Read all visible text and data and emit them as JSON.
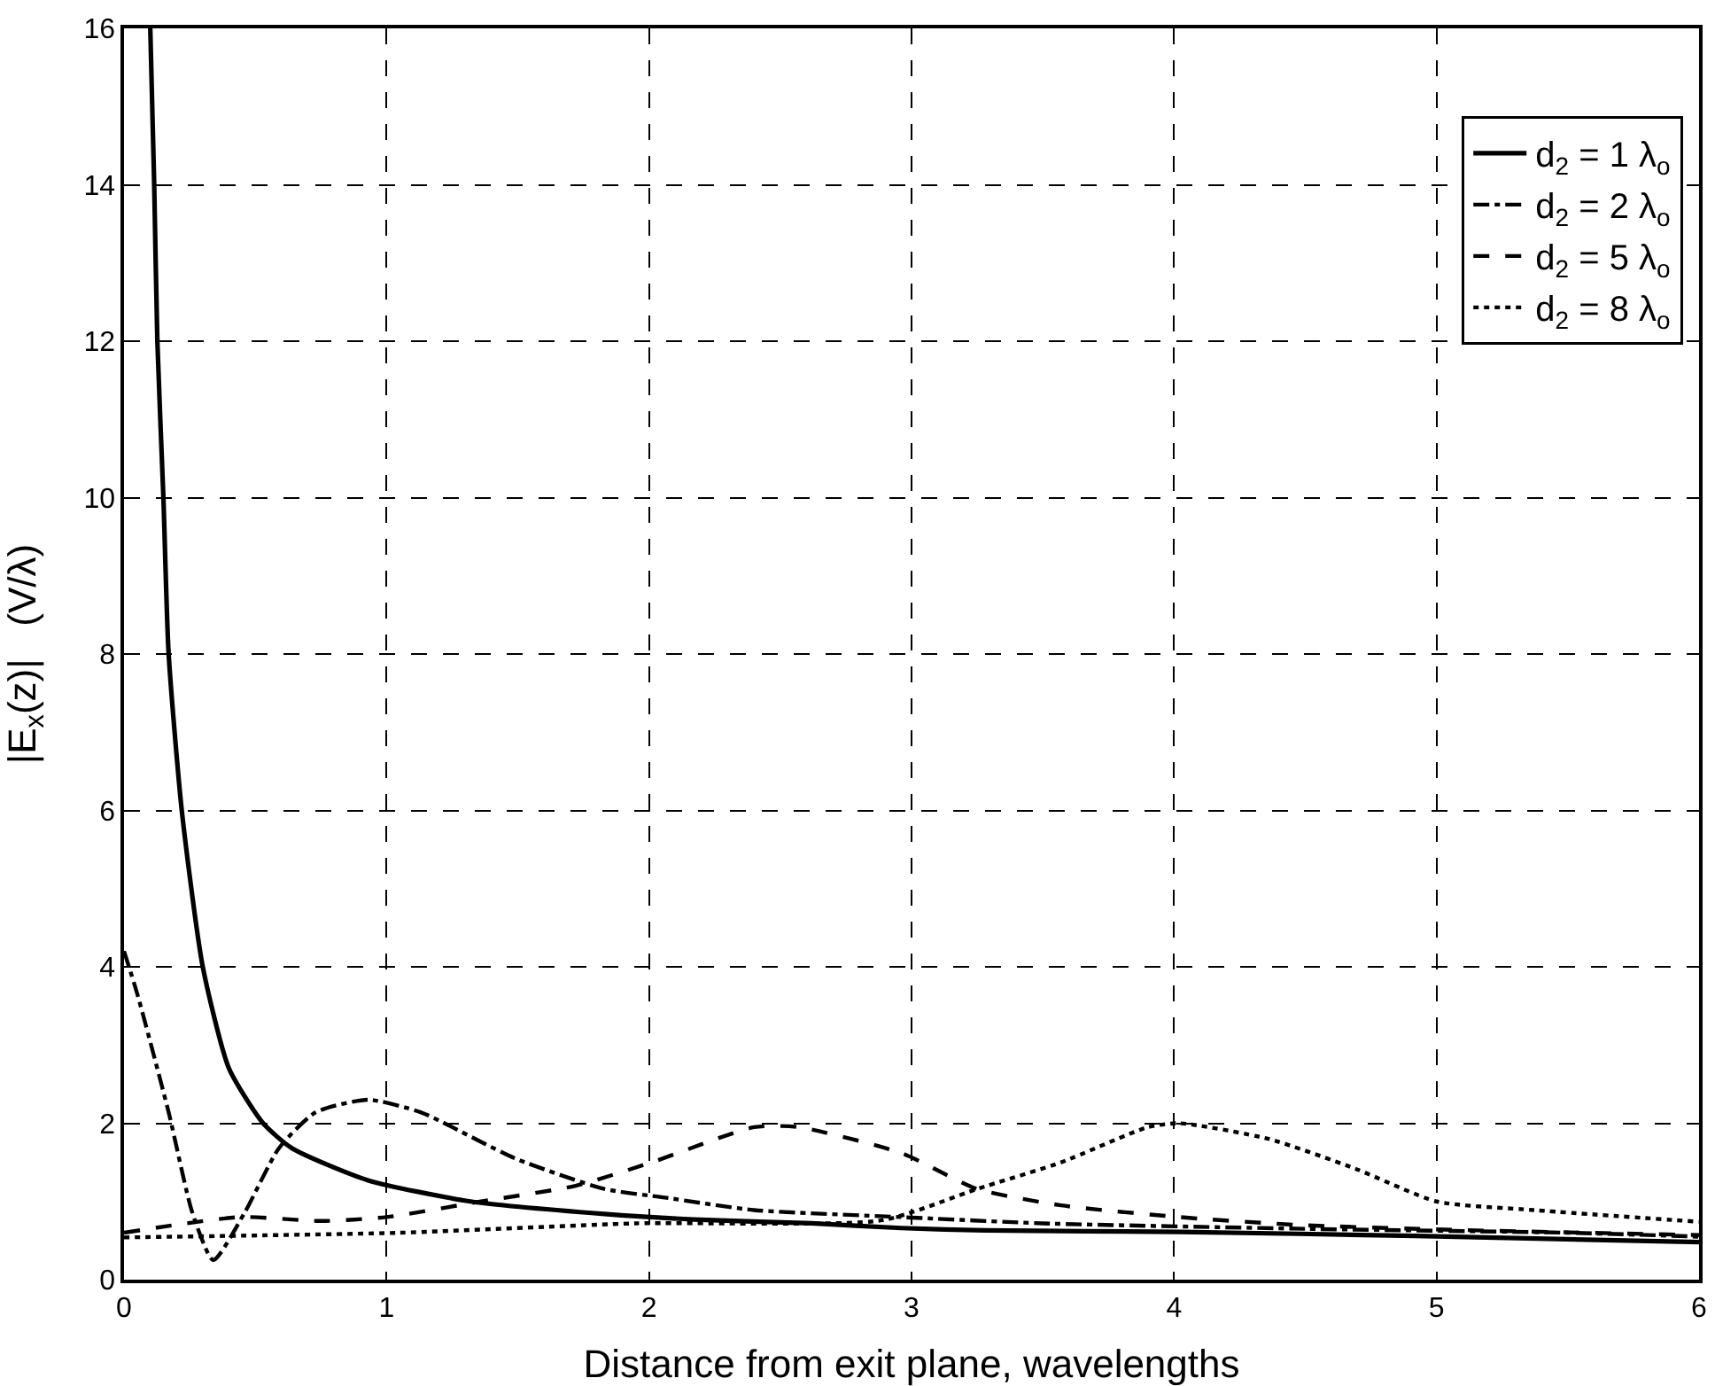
{
  "chart_data": {
    "type": "line",
    "xlabel": "Distance from exit plane, wavelengths",
    "ylabel": "|E$_{x}$(z)|   (V/λ)",
    "xlim": [
      0,
      6
    ],
    "ylim": [
      0,
      16
    ],
    "xticks": [
      0,
      1,
      2,
      3,
      4,
      5,
      6
    ],
    "yticks": [
      0,
      2,
      4,
      6,
      8,
      10,
      12,
      14,
      16
    ],
    "grid": true,
    "legend": "top right",
    "marker": "none",
    "series": [
      {
        "name": "d$_{2}$ = 1 λ$_{o}$",
        "color": "#000000",
        "line_style": "solid",
        "x": [
          0.1,
          0.115,
          0.127,
          0.15,
          0.17,
          0.22,
          0.3,
          0.4,
          0.53,
          0.64,
          0.93,
          1.32,
          1.83,
          2.17,
          2.62,
          2.96,
          3.28,
          4.02,
          4.92,
          6.0
        ],
        "values": [
          16,
          14,
          12,
          10,
          8,
          6,
          4,
          2.7,
          2.0,
          1.68,
          1.27,
          1.0,
          0.84,
          0.77,
          0.72,
          0.66,
          0.63,
          0.61,
          0.56,
          0.48
        ]
      },
      {
        "name": "d$_{2}$ = 2 λ$_{o}$",
        "color": "#000000",
        "line_style": "dashdot",
        "x": [
          0,
          0.05,
          0.17,
          0.26,
          0.34,
          0.46,
          0.59,
          0.73,
          0.93,
          1.13,
          1.49,
          1.83,
          2.06,
          2.4,
          2.96,
          3.5,
          4.5,
          5.5,
          6.0
        ],
        "values": [
          4.2,
          3.66,
          2.14,
          0.86,
          0.25,
          0.86,
          1.68,
          2.14,
          2.3,
          2.14,
          1.55,
          1.16,
          1.05,
          0.89,
          0.8,
          0.72,
          0.65,
          0.6,
          0.55
        ]
      },
      {
        "name": "d$_{2}$ = 5 λ$_{o}$",
        "color": "#000000",
        "line_style": "dashed",
        "x": [
          0,
          0.44,
          0.75,
          1.0,
          1.36,
          1.72,
          2.01,
          2.4,
          2.57,
          2.96,
          3.25,
          3.57,
          4.02,
          4.47,
          5.03,
          6.0
        ],
        "values": [
          0.6,
          0.8,
          0.75,
          0.8,
          1.0,
          1.2,
          1.5,
          1.95,
          1.95,
          1.62,
          1.16,
          0.95,
          0.8,
          0.7,
          0.64,
          0.57
        ]
      },
      {
        "name": "d$_{2}$ = 8 λ$_{o}$",
        "color": "#000000",
        "line_style": "dotted",
        "x": [
          0,
          1.05,
          1.95,
          2.89,
          3.25,
          3.57,
          3.9,
          4.02,
          4.36,
          4.69,
          5.0,
          5.37,
          6.0
        ],
        "values": [
          0.54,
          0.6,
          0.72,
          0.76,
          1.16,
          1.5,
          1.95,
          2.0,
          1.8,
          1.42,
          1.0,
          0.89,
          0.74
        ]
      }
    ]
  }
}
